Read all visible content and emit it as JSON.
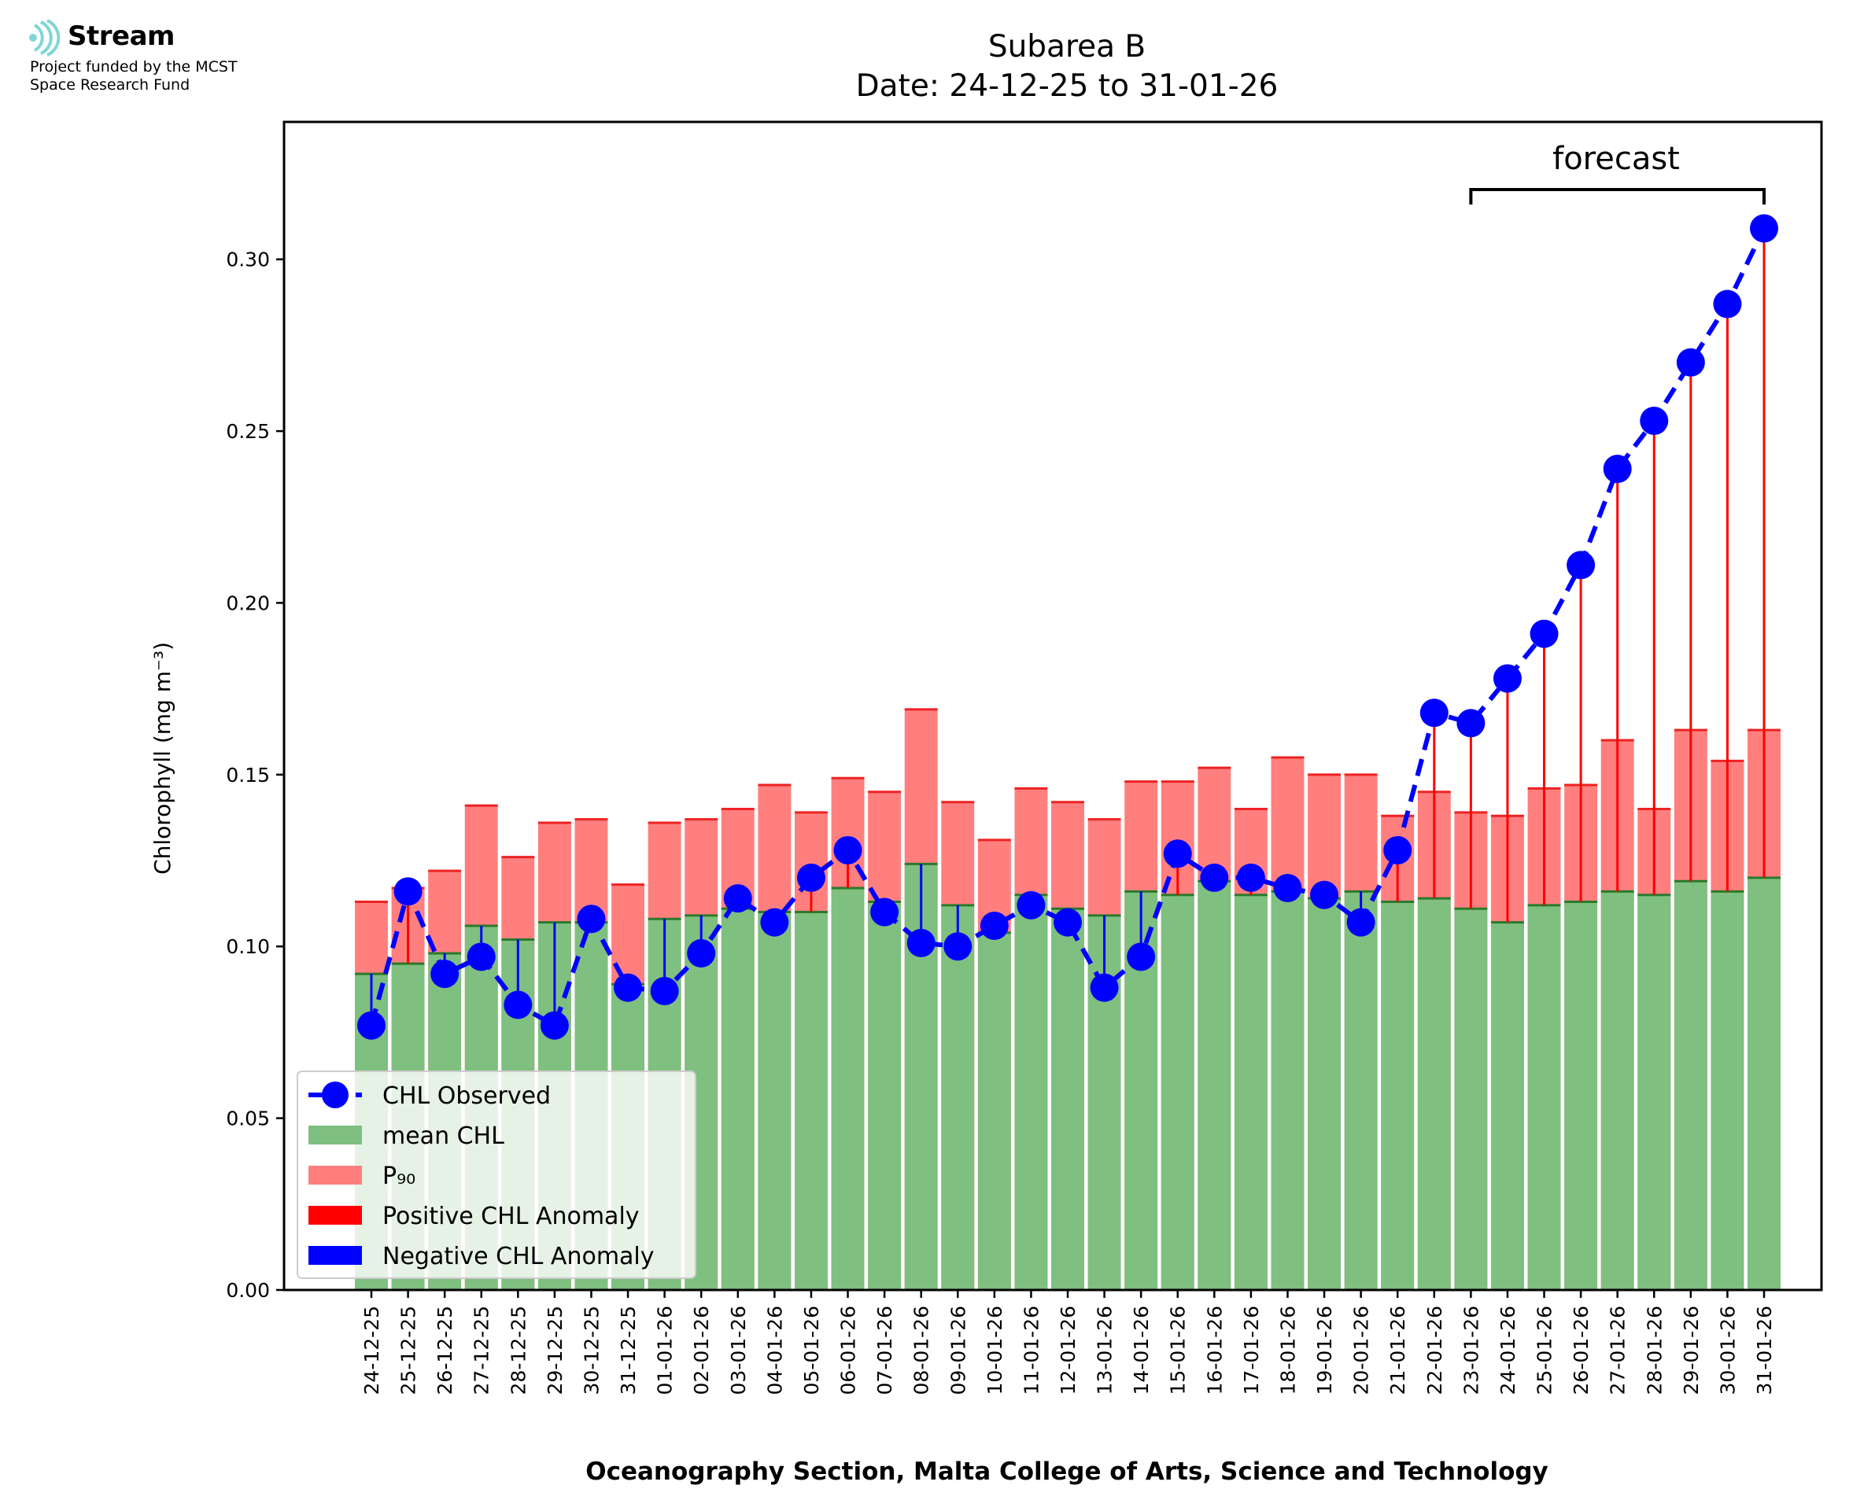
{
  "logo": {
    "brand": "Stream",
    "funded_line1": "Project funded by the MCST",
    "funded_line2": "Space Research Fund"
  },
  "chart_data": {
    "type": "bar",
    "title": "Subarea B",
    "subtitle": "Date: 24-12-25 to 31-01-26",
    "ylabel": "Chlorophyll (mg m⁻³)",
    "xlabel": "Oceanography Section, Malta College of Arts, Science and Technology",
    "ylim": [
      0,
      0.34
    ],
    "yticks": [
      "0.00",
      "0.05",
      "0.10",
      "0.15",
      "0.20",
      "0.25",
      "0.30"
    ],
    "annotation": "forecast",
    "forecast_start": "23-01-26",
    "forecast_end": "31-01-26",
    "grid": false,
    "legend_position": "lower-left",
    "categories": [
      "24-12-25",
      "25-12-25",
      "26-12-25",
      "27-12-25",
      "28-12-25",
      "29-12-25",
      "30-12-25",
      "31-12-25",
      "01-01-26",
      "02-01-26",
      "03-01-26",
      "04-01-26",
      "05-01-26",
      "06-01-26",
      "07-01-26",
      "08-01-26",
      "09-01-26",
      "10-01-26",
      "11-01-26",
      "12-01-26",
      "13-01-26",
      "14-01-26",
      "15-01-26",
      "16-01-26",
      "17-01-26",
      "18-01-26",
      "19-01-26",
      "20-01-26",
      "21-01-26",
      "22-01-26",
      "23-01-26",
      "24-01-26",
      "25-01-26",
      "26-01-26",
      "27-01-26",
      "28-01-26",
      "29-01-26",
      "30-01-26",
      "31-01-26"
    ],
    "series": [
      {
        "name": "CHL Observed",
        "kind": "line",
        "color": "#0000ff",
        "values": [
          0.077,
          0.116,
          0.092,
          0.097,
          0.083,
          0.077,
          0.108,
          0.088,
          0.087,
          0.098,
          0.114,
          0.107,
          0.12,
          0.128,
          0.11,
          0.101,
          0.1,
          0.106,
          0.112,
          0.107,
          0.088,
          0.097,
          0.127,
          0.12,
          0.12,
          0.117,
          0.115,
          0.107,
          0.128,
          0.168,
          0.165,
          0.178,
          0.191,
          0.211,
          0.239,
          0.253,
          0.27,
          0.287,
          0.309
        ]
      },
      {
        "name": "mean CHL",
        "kind": "bar",
        "color": "#7fbf7f",
        "values": [
          0.092,
          0.095,
          0.098,
          0.106,
          0.102,
          0.107,
          0.107,
          0.089,
          0.108,
          0.109,
          0.111,
          0.11,
          0.11,
          0.117,
          0.113,
          0.124,
          0.112,
          0.104,
          0.115,
          0.111,
          0.109,
          0.116,
          0.115,
          0.119,
          0.115,
          0.116,
          0.114,
          0.116,
          0.113,
          0.114,
          0.111,
          0.107,
          0.112,
          0.113,
          0.116,
          0.115,
          0.119,
          0.116,
          0.12
        ]
      },
      {
        "name": "P₉₀",
        "kind": "bar",
        "color": "#ff7f7f",
        "values": [
          0.113,
          0.117,
          0.122,
          0.141,
          0.126,
          0.136,
          0.137,
          0.118,
          0.136,
          0.137,
          0.14,
          0.147,
          0.139,
          0.149,
          0.145,
          0.169,
          0.142,
          0.131,
          0.146,
          0.142,
          0.137,
          0.148,
          0.148,
          0.152,
          0.14,
          0.155,
          0.15,
          0.15,
          0.138,
          0.145,
          0.139,
          0.138,
          0.146,
          0.147,
          0.16,
          0.14,
          0.163,
          0.154,
          0.163
        ]
      },
      {
        "name": "Positive CHL Anomaly",
        "kind": "errorbar",
        "color": "#ff0000"
      },
      {
        "name": "Negative CHL Anomaly",
        "kind": "errorbar",
        "color": "#0000ff"
      }
    ],
    "legend": [
      {
        "label": "CHL Observed",
        "marker": "line-dot",
        "color": "#0000ff"
      },
      {
        "label": "mean CHL",
        "marker": "patch",
        "color": "#7fbf7f"
      },
      {
        "label": "P₉₀",
        "marker": "patch",
        "color": "#ff7f7f"
      },
      {
        "label": "Positive CHL Anomaly",
        "marker": "patch",
        "color": "#ff0000"
      },
      {
        "label": "Negative CHL Anomaly",
        "marker": "patch",
        "color": "#0000ff"
      }
    ]
  }
}
